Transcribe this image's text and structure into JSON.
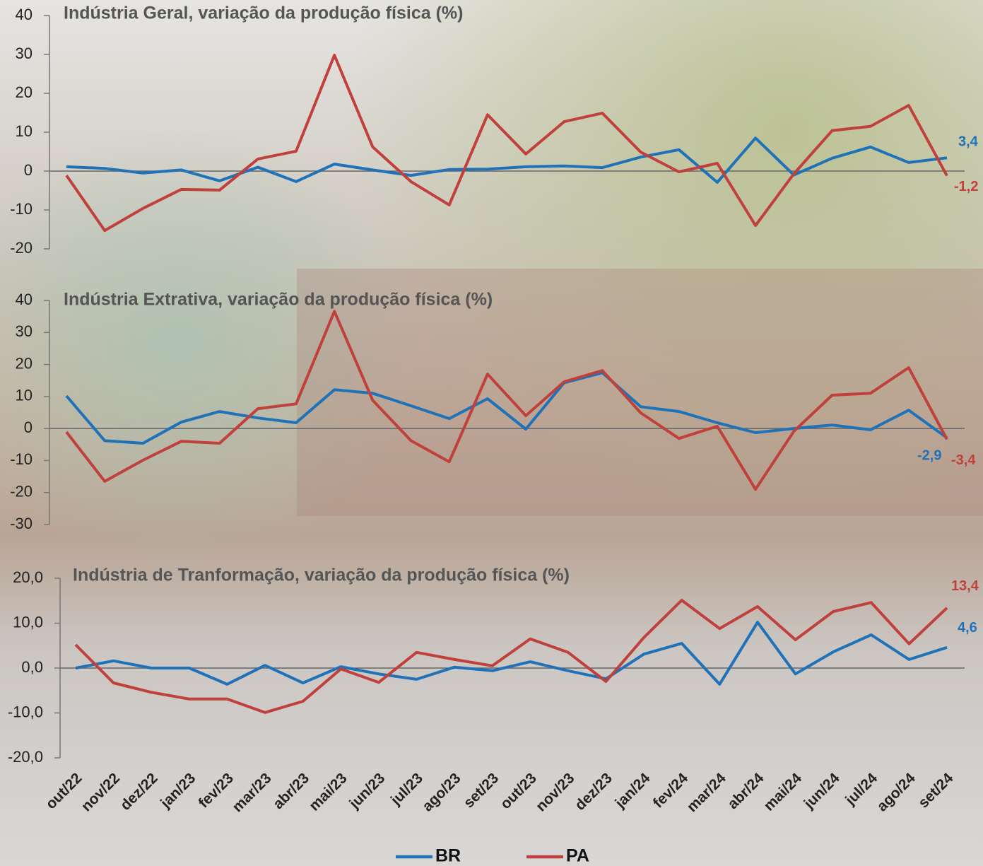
{
  "chart_data": [
    {
      "type": "line",
      "title": "Indústria Geral, variação da produção física (%)",
      "ylim": [
        -20,
        40
      ],
      "yticks": [
        -20,
        -10,
        0,
        10,
        20,
        30,
        40
      ],
      "series": [
        {
          "color": "#1f72b8",
          "values": [
            1.1,
            0.7,
            -0.5,
            0.3,
            -2.5,
            1.0,
            -2.7,
            1.8,
            0.3,
            -1.1,
            0.4,
            0.5,
            1.1,
            1.3,
            0.9,
            3.6,
            5.5,
            -2.9,
            8.5,
            -1.0,
            3.3,
            6.2,
            2.2,
            3.4
          ],
          "value_labels": [
            null,
            null,
            null,
            null,
            null,
            null,
            null,
            null,
            null,
            null,
            null,
            null,
            null,
            null,
            null,
            null,
            null,
            null,
            null,
            null,
            null,
            null,
            null,
            "3,4"
          ]
        },
        {
          "color": "#c0403c",
          "values": [
            -1.1,
            -15.3,
            -9.6,
            -4.7,
            -4.9,
            3.1,
            5.1,
            29.8,
            6.2,
            -2.7,
            -8.7,
            14.5,
            4.4,
            12.7,
            14.9,
            4.9,
            -0.2,
            2.0,
            -14.0,
            -0.7,
            10.4,
            11.5,
            16.9,
            -1.2
          ],
          "value_labels": [
            null,
            null,
            null,
            null,
            null,
            null,
            null,
            null,
            null,
            null,
            null,
            null,
            null,
            null,
            null,
            null,
            null,
            null,
            null,
            null,
            null,
            null,
            null,
            "-1,2"
          ]
        }
      ]
    },
    {
      "type": "line",
      "title": "Indústria Extrativa, variação da produção física (%)",
      "ylim": [
        -30,
        40
      ],
      "yticks": [
        -30,
        -20,
        -10,
        0,
        10,
        20,
        30,
        40
      ],
      "series": [
        {
          "color": "#1f72b8",
          "values": [
            10.2,
            -3.8,
            -4.6,
            2.0,
            5.3,
            3.3,
            1.8,
            12.1,
            11.0,
            7.1,
            3.1,
            9.3,
            -0.2,
            14.3,
            17.4,
            6.8,
            5.3,
            1.8,
            -1.3,
            0,
            1.1,
            -0.4,
            5.7,
            -2.9
          ],
          "value_labels": [
            null,
            null,
            null,
            null,
            null,
            null,
            null,
            null,
            null,
            null,
            null,
            null,
            null,
            null,
            null,
            null,
            null,
            null,
            null,
            null,
            null,
            null,
            null,
            "-2,9"
          ]
        },
        {
          "color": "#c0403c",
          "values": [
            -1.1,
            -16.5,
            -9.9,
            -4.0,
            -4.6,
            6.2,
            7.7,
            36.6,
            8.8,
            -3.8,
            -10.4,
            17.0,
            4.0,
            14.6,
            18.1,
            4.9,
            -3.1,
            0.7,
            -19.0,
            -0.9,
            10.4,
            11.0,
            19.0,
            -3.4
          ],
          "value_labels": [
            null,
            null,
            null,
            null,
            null,
            null,
            null,
            null,
            null,
            null,
            null,
            null,
            null,
            null,
            null,
            null,
            null,
            null,
            null,
            null,
            null,
            null,
            null,
            "-3,4"
          ]
        }
      ]
    },
    {
      "type": "line",
      "title": "Indústria de Tranformação, variação da produção física (%)",
      "ylim": [
        -20,
        20
      ],
      "yticks": [
        {
          "value": -20,
          "label": "-20,0"
        },
        {
          "value": -10,
          "label": "-10,0"
        },
        {
          "value": 0,
          "label": "0,0"
        },
        {
          "value": 10,
          "label": "10,0"
        },
        {
          "value": 20,
          "label": "20,0"
        }
      ],
      "categories": [
        "out/22",
        "nov/22",
        "dez/22",
        "jan/23",
        "fev/23",
        "mar/23",
        "abr/23",
        "mai/23",
        "jun/23",
        "jul/23",
        "ago/23",
        "set/23",
        "out/23",
        "nov/23",
        "dez/23",
        "jan/24",
        "fev/24",
        "mar/24",
        "abr/24",
        "mai/24",
        "jun/24",
        "jul/24",
        "ago/24",
        "set/24"
      ],
      "legend": "bottom",
      "series": [
        {
          "name": "BR",
          "color": "#1f72b8",
          "values": [
            0,
            1.6,
            0,
            0,
            -3.6,
            0.6,
            -3.3,
            0.3,
            -1.3,
            -2.5,
            0.2,
            -0.6,
            1.4,
            -0.6,
            -2.4,
            3.1,
            5.5,
            -3.6,
            10.2,
            -1.3,
            3.6,
            7.4,
            1.9,
            4.6
          ],
          "value_labels": [
            null,
            null,
            null,
            null,
            null,
            null,
            null,
            null,
            null,
            null,
            null,
            null,
            null,
            null,
            null,
            null,
            null,
            null,
            null,
            null,
            null,
            null,
            null,
            "4,6"
          ]
        },
        {
          "name": "PA",
          "color": "#c0403c",
          "values": [
            5.2,
            -3.3,
            -5.4,
            -6.9,
            -6.9,
            -9.9,
            -7.4,
            -0.2,
            -3.2,
            3.5,
            1.9,
            0.5,
            6.5,
            3.5,
            -3.0,
            6.8,
            15.1,
            8.8,
            13.7,
            6.3,
            12.6,
            14.6,
            5.4,
            13.4
          ],
          "value_labels": [
            null,
            null,
            null,
            null,
            null,
            null,
            null,
            null,
            null,
            null,
            null,
            null,
            null,
            null,
            null,
            null,
            null,
            null,
            null,
            null,
            null,
            null,
            null,
            "13,4"
          ]
        }
      ]
    }
  ]
}
